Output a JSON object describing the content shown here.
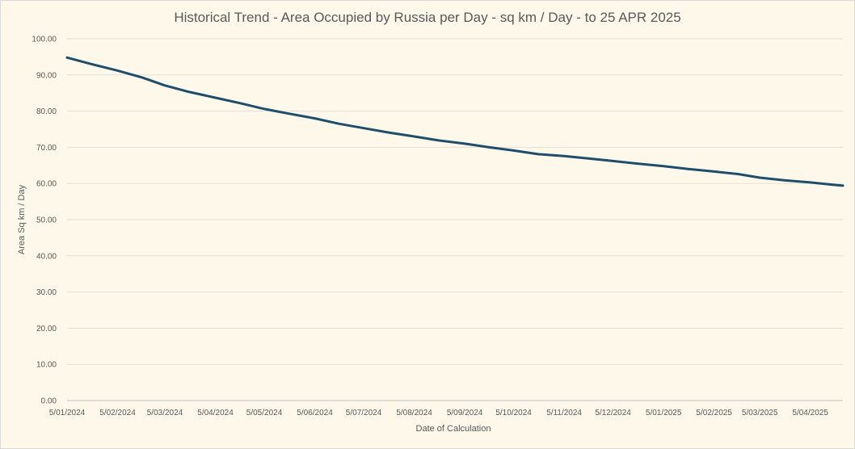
{
  "chart_data": {
    "type": "line",
    "title": "Historical Trend - Area Occupied by Russia per Day - sq km / Day - to 25 APR 2025",
    "xlabel": "Date of Calculation",
    "ylabel": "Area Sq km / Day",
    "ylim": [
      0,
      100
    ],
    "grid": true,
    "legend": "none",
    "line_color": "#1f4e6b",
    "y_ticks": [
      "0.00",
      "10.00",
      "20.00",
      "30.00",
      "40.00",
      "50.00",
      "60.00",
      "70.00",
      "80.00",
      "90.00",
      "100.00"
    ],
    "x_ticks": [
      "5/01/2024",
      "5/02/2024",
      "5/03/2024",
      "5/04/2024",
      "5/05/2024",
      "5/06/2024",
      "5/07/2024",
      "5/08/2024",
      "5/09/2024",
      "5/10/2024",
      "5/11/2024",
      "5/12/2024",
      "5/01/2025",
      "5/02/2025",
      "5/03/2025",
      "5/04/2025"
    ],
    "x_end": "25/04/2025",
    "series": [
      {
        "x": [
          "5/01/2024",
          "20/01/2024",
          "5/02/2024",
          "20/02/2024",
          "5/03/2024",
          "20/03/2024",
          "5/04/2024",
          "20/04/2024",
          "5/05/2024",
          "20/05/2024",
          "5/06/2024",
          "20/06/2024",
          "5/07/2024",
          "20/07/2024",
          "5/08/2024",
          "20/08/2024",
          "5/09/2024",
          "20/09/2024",
          "5/10/2024",
          "20/10/2024",
          "5/11/2024",
          "20/11/2024",
          "5/12/2024",
          "20/12/2024",
          "5/01/2025",
          "20/01/2025",
          "5/02/2025",
          "20/02/2025",
          "5/03/2025",
          "20/03/2025",
          "5/04/2025",
          "20/04/2025",
          "25/04/2025"
        ],
        "values": [
          94.8,
          93.0,
          91.2,
          89.3,
          87.1,
          85.3,
          83.7,
          82.2,
          80.6,
          79.3,
          78.0,
          76.5,
          75.3,
          74.1,
          73.0,
          71.9,
          71.0,
          70.0,
          69.1,
          68.1,
          67.6,
          66.9,
          66.2,
          65.5,
          64.8,
          64.0,
          63.3,
          62.6,
          61.6,
          60.9,
          60.3,
          59.6,
          59.4
        ]
      }
    ]
  }
}
